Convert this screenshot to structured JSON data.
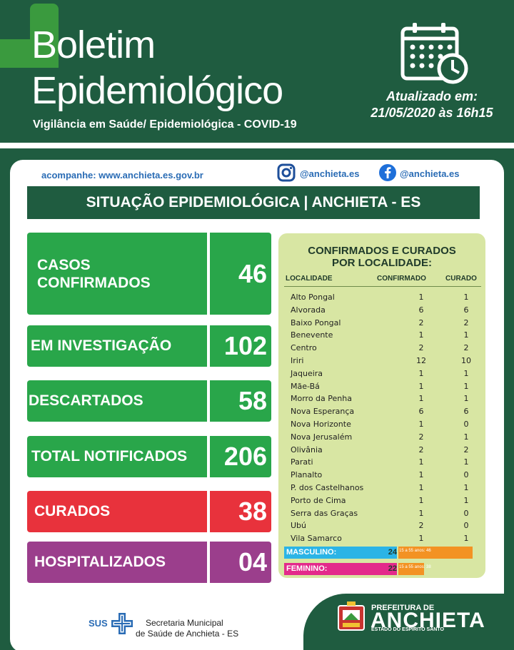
{
  "header": {
    "title_line1": "Boletim",
    "title_line2": "Epidemiológico",
    "subtitle": "Vigilância em Saúde/ Epidemiológica - COVID-19",
    "updated_label": "Atualizado em:",
    "updated_date": "21/05/2020 às 16h15",
    "calendar_icon": "calendar-clock-icon"
  },
  "social": {
    "follow_text": "acompanhe: www.anchieta.es.gov.br",
    "instagram_handle": "@anchieta.es",
    "facebook_handle": "@anchieta.es"
  },
  "situation_title": "SITUAÇÃO EPIDEMIOLÓGICA | ANCHIETA - ES",
  "stats": {
    "confirmed": {
      "label_line1": "CASOS",
      "label_line2": "CONFIRMADOS",
      "value": "46",
      "color": "#29a64a"
    },
    "investigation": {
      "label": "EM INVESTIGAÇÃO",
      "value": "102",
      "color": "#29a64a"
    },
    "discarded": {
      "label": "DESCARTADOS",
      "value": "58",
      "color": "#29a64a"
    },
    "notified": {
      "label": "TOTAL NOTIFICADOS",
      "value": "206",
      "color": "#29a64a"
    },
    "cured": {
      "label": "CURADOS",
      "value": "38",
      "color": "#e8323c"
    },
    "hospitalized": {
      "label": "HOSPITALIZADOS",
      "value": "04",
      "color": "#9b3e8c"
    }
  },
  "table": {
    "title_line1": "CONFIRMADOS E CURADOS",
    "title_line2": "POR LOCALIDADE:",
    "headers": {
      "locality": "LOCALIDADE",
      "confirmed": "CONFIRMADO",
      "cured": "CURADO"
    },
    "rows": [
      {
        "loc": "Alto Pongal",
        "conf": "1",
        "cur": "1"
      },
      {
        "loc": "Alvorada",
        "conf": "6",
        "cur": "6"
      },
      {
        "loc": "Baixo Pongal",
        "conf": "2",
        "cur": "2"
      },
      {
        "loc": "Benevente",
        "conf": "1",
        "cur": "1"
      },
      {
        "loc": "Centro",
        "conf": "2",
        "cur": "2"
      },
      {
        "loc": "Iriri",
        "conf": "12",
        "cur": "10"
      },
      {
        "loc": "Jaqueira",
        "conf": "1",
        "cur": "1"
      },
      {
        "loc": "Mãe-Bá",
        "conf": "1",
        "cur": "1"
      },
      {
        "loc": "Morro da Penha",
        "conf": "1",
        "cur": "1"
      },
      {
        "loc": "Nova Esperança",
        "conf": "6",
        "cur": "6"
      },
      {
        "loc": "Nova Horizonte",
        "conf": "1",
        "cur": "0"
      },
      {
        "loc": "Nova Jerusalém",
        "conf": "2",
        "cur": "1"
      },
      {
        "loc": "Olivânia",
        "conf": "2",
        "cur": "2"
      },
      {
        "loc": "Parati",
        "conf": "1",
        "cur": "1"
      },
      {
        "loc": "Planalto",
        "conf": "1",
        "cur": "0"
      },
      {
        "loc": "P. dos Castelhanos",
        "conf": "1",
        "cur": "1"
      },
      {
        "loc": "Porto de Cima",
        "conf": "1",
        "cur": "1"
      },
      {
        "loc": "Serra das Graças",
        "conf": "1",
        "cur": "0"
      },
      {
        "loc": "Ubú",
        "conf": "2",
        "cur": "0"
      },
      {
        "loc": "Vila Samarco",
        "conf": "1",
        "cur": "1"
      }
    ],
    "gender": {
      "male_label": "MASCULINO:",
      "male_value": "24",
      "male_bar_text": "15 a 55 anos: 46",
      "female_label": "FEMININO:",
      "female_value": "22",
      "female_bar_text": "15 a 55 anos: 38"
    }
  },
  "footer": {
    "sus": "SUS",
    "secretaria_line1": "Secretaria Municipal",
    "secretaria_line2": "de Saúde de Anchieta - ES",
    "prefeitura_line1": "PREFEITURA DE",
    "prefeitura_line2": "ANCHIETA",
    "prefeitura_line3": "ESTADO DO ESPÍRITO SANTO"
  }
}
